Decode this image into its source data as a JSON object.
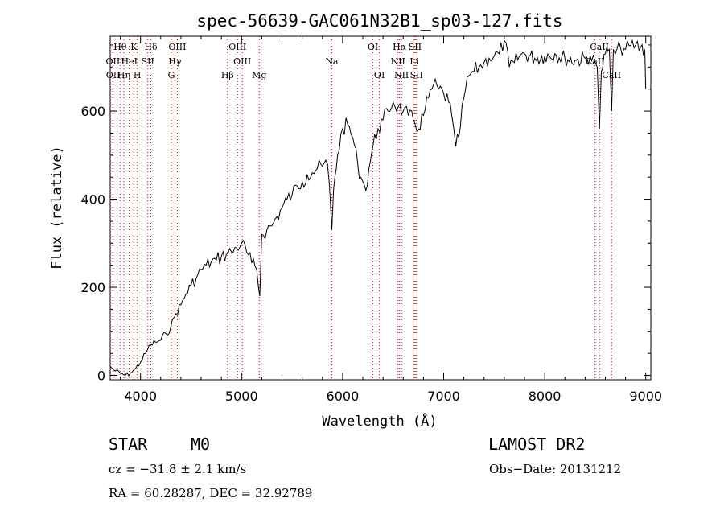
{
  "chart_data": {
    "type": "line",
    "title": "spec-56639-GAC061N32B1_sp03-127.fits",
    "xlabel": "Wavelength (Å)",
    "ylabel": "Flux (relative)",
    "xlim": [
      3700,
      9050
    ],
    "ylim": [
      -10,
      770
    ],
    "xticks": [
      4000,
      5000,
      6000,
      7000,
      8000,
      9000
    ],
    "yticks": [
      0,
      200,
      400,
      600
    ],
    "grid": false,
    "spectrum_color": "#000000",
    "line_marker_color": "#cc0000",
    "series": [
      {
        "x": [
          3700,
          3750,
          3800,
          3850,
          3900,
          3950,
          4000,
          4050,
          4100,
          4150,
          4200,
          4250,
          4300,
          4350,
          4400,
          4450,
          4500,
          4550,
          4600,
          4650,
          4700,
          4750,
          4800,
          4850,
          4900,
          4950,
          5000,
          5050,
          5100,
          5150,
          5180,
          5200,
          5250,
          5300,
          5350,
          5400,
          5450,
          5500,
          5550,
          5600,
          5650,
          5700,
          5750,
          5800,
          5850,
          5870,
          5893,
          5910,
          5950,
          6000,
          6050,
          6100,
          6150,
          6180,
          6200,
          6230,
          6260,
          6300,
          6350,
          6400,
          6450,
          6500,
          6550,
          6600,
          6650,
          6700,
          6750,
          6800,
          6850,
          6900,
          6950,
          7000,
          7050,
          7080,
          7100,
          7120,
          7150,
          7200,
          7250,
          7300,
          7350,
          7400,
          7450,
          7500,
          7550,
          7600,
          7650,
          7700,
          7750,
          7800,
          7900,
          8000,
          8100,
          8200,
          8300,
          8400,
          8450,
          8498,
          8520,
          8542,
          8560,
          8600,
          8640,
          8662,
          8680,
          8700,
          8750,
          8800,
          8850,
          8900,
          8950,
          8990,
          9000
        ],
        "y": [
          20,
          10,
          5,
          0,
          5,
          15,
          30,
          50,
          70,
          75,
          80,
          95,
          110,
          140,
          160,
          185,
          205,
          220,
          240,
          250,
          258,
          262,
          270,
          275,
          280,
          290,
          300,
          280,
          255,
          240,
          180,
          320,
          330,
          340,
          360,
          380,
          400,
          410,
          430,
          440,
          455,
          460,
          470,
          475,
          480,
          430,
          330,
          420,
          500,
          560,
          570,
          540,
          480,
          450,
          440,
          420,
          470,
          520,
          560,
          580,
          600,
          620,
          610,
          600,
          590,
          580,
          560,
          590,
          630,
          660,
          650,
          640,
          620,
          590,
          560,
          520,
          540,
          630,
          680,
          690,
          700,
          710,
          720,
          725,
          730,
          760,
          700,
          710,
          725,
          730,
          720,
          725,
          730,
          720,
          715,
          720,
          725,
          710,
          700,
          560,
          690,
          730,
          740,
          600,
          740,
          730,
          745,
          740,
          748,
          750,
          745,
          740,
          650
        ]
      }
    ],
    "line_markers": [
      {
        "label": "Hθ",
        "x": 3798,
        "row": 0
      },
      {
        "label": "K",
        "x": 3934,
        "row": 0
      },
      {
        "label": "Hδ",
        "x": 4102,
        "row": 0
      },
      {
        "label": "OIII",
        "x": 4364,
        "row": 0
      },
      {
        "label": "OIII",
        "x": 4960,
        "row": 0
      },
      {
        "label": "OI",
        "x": 6300,
        "row": 0
      },
      {
        "label": "Hα",
        "x": 6563,
        "row": 0
      },
      {
        "label": "SII",
        "x": 6717,
        "row": 0
      },
      {
        "label": "CaII",
        "x": 8542,
        "row": 0
      },
      {
        "label": "OII",
        "x": 3727,
        "row": 1
      },
      {
        "label": "HeI",
        "x": 3889,
        "row": 1
      },
      {
        "label": "SII",
        "x": 4072,
        "row": 1
      },
      {
        "label": "Hγ",
        "x": 4340,
        "row": 1
      },
      {
        "label": "OIII",
        "x": 5007,
        "row": 1
      },
      {
        "label": "NII",
        "x": 6548,
        "row": 1
      },
      {
        "label": "Li",
        "x": 6708,
        "row": 1
      },
      {
        "label": "CaII",
        "x": 8498,
        "row": 1
      },
      {
        "label": "OII",
        "x": 3729,
        "row": 2
      },
      {
        "label": "Hη",
        "x": 3835,
        "row": 2
      },
      {
        "label": "H",
        "x": 3968,
        "row": 2
      },
      {
        "label": "G",
        "x": 4305,
        "row": 2
      },
      {
        "label": "Hβ",
        "x": 4861,
        "row": 2
      },
      {
        "label": "Mg",
        "x": 5175,
        "row": 2
      },
      {
        "label": "Na",
        "x": 5893,
        "row": 1
      },
      {
        "label": "OI",
        "x": 6364,
        "row": 2
      },
      {
        "label": "NII",
        "x": 6583,
        "row": 2
      },
      {
        "label": "SII",
        "x": 6731,
        "row": 2
      },
      {
        "label": "CaII",
        "x": 8662,
        "row": 2
      }
    ]
  },
  "info": {
    "object_class": "STAR",
    "subclass": "M0",
    "survey": "LAMOST DR2",
    "cz": "cz = −31.8 ± 2.1 km/s",
    "obs_date": "Obs−Date: 20131212",
    "coords": "RA =  60.28287, DEC =  32.92789"
  }
}
